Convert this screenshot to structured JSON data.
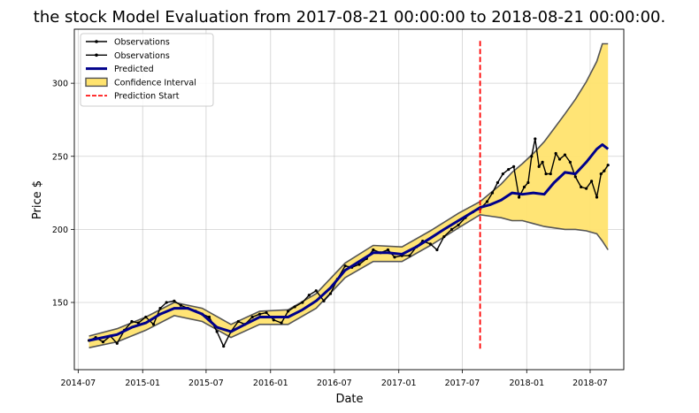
{
  "chart_data": {
    "type": "line",
    "title": "the stock Model Evaluation from 2017-08-21 00:00:00 to 2018-08-21 00:00:00.",
    "xlabel": "Date",
    "ylabel": "Price $",
    "x_ticks": [
      "2014-07",
      "2015-01",
      "2015-07",
      "2016-01",
      "2016-07",
      "2017-01",
      "2017-07",
      "2018-01",
      "2018-07"
    ],
    "y_ticks": [
      150,
      200,
      250,
      300
    ],
    "xlim": [
      "2014-06-20",
      "2018-10-05"
    ],
    "ylim": [
      104,
      337
    ],
    "grid": true,
    "legend_position": "top-left",
    "prediction_start": "2017-08-21",
    "prediction_start_line": {
      "y_range": [
        118,
        329
      ]
    },
    "colors": {
      "observations": "#000000",
      "predicted": "#00008b",
      "confidence_fill": "#ffe36e",
      "confidence_edge": "#555555",
      "prediction_start": "#ff0000"
    },
    "legend": [
      {
        "label": "Observations",
        "kind": "obs"
      },
      {
        "label": "Observations",
        "kind": "obs"
      },
      {
        "label": "Predicted",
        "kind": "pred"
      },
      {
        "label": "Confidence Interval",
        "kind": "ci"
      },
      {
        "label": "Prediction Start",
        "kind": "start"
      }
    ],
    "series": [
      {
        "name": "Observations",
        "x": [
          "2014-08-01",
          "2014-08-20",
          "2014-09-10",
          "2014-10-01",
          "2014-10-20",
          "2014-11-10",
          "2014-12-01",
          "2014-12-20",
          "2015-01-10",
          "2015-02-01",
          "2015-02-20",
          "2015-03-10",
          "2015-04-01",
          "2015-04-20",
          "2015-05-10",
          "2015-06-01",
          "2015-06-20",
          "2015-07-10",
          "2015-08-01",
          "2015-08-20",
          "2015-09-10",
          "2015-10-01",
          "2015-10-20",
          "2015-11-10",
          "2015-12-01",
          "2015-12-20",
          "2016-01-10",
          "2016-02-01",
          "2016-02-20",
          "2016-03-10",
          "2016-04-01",
          "2016-04-20",
          "2016-05-10",
          "2016-06-01",
          "2016-06-20",
          "2016-07-10",
          "2016-08-01",
          "2016-08-20",
          "2016-09-10",
          "2016-10-01",
          "2016-10-20",
          "2016-11-10",
          "2016-12-01",
          "2016-12-20",
          "2017-01-10",
          "2017-02-01",
          "2017-02-20",
          "2017-03-10",
          "2017-04-01",
          "2017-04-20",
          "2017-05-10",
          "2017-06-01",
          "2017-06-20",
          "2017-07-10",
          "2017-08-01",
          "2017-08-21",
          "2017-09-10",
          "2017-09-25",
          "2017-10-10",
          "2017-10-25",
          "2017-11-10",
          "2017-11-25",
          "2017-12-10",
          "2017-12-25",
          "2018-01-05",
          "2018-01-15",
          "2018-01-25",
          "2018-02-05",
          "2018-02-15",
          "2018-02-25",
          "2018-03-10",
          "2018-03-25",
          "2018-04-05",
          "2018-04-20",
          "2018-05-05",
          "2018-05-20",
          "2018-06-05",
          "2018-06-20",
          "2018-07-05",
          "2018-07-20",
          "2018-08-01",
          "2018-08-10",
          "2018-08-21"
        ],
        "values": [
          124,
          126,
          123,
          127,
          122,
          131,
          137,
          136,
          140,
          135,
          146,
          150,
          151,
          148,
          146,
          144,
          142,
          140,
          130,
          120,
          130,
          137,
          135,
          140,
          142,
          143,
          138,
          136,
          144,
          147,
          150,
          155,
          158,
          151,
          156,
          166,
          175,
          174,
          176,
          180,
          186,
          184,
          186,
          181,
          182,
          182,
          188,
          192,
          190,
          186,
          195,
          200,
          203,
          208,
          212,
          214,
          219,
          225,
          232,
          238,
          241,
          243,
          222,
          229,
          232,
          250,
          262,
          243,
          246,
          238,
          238,
          252,
          248,
          251,
          246,
          236,
          229,
          228,
          233,
          222,
          238,
          240,
          244
        ]
      },
      {
        "name": "Predicted",
        "x": [
          "2014-08-01",
          "2014-09-10",
          "2014-10-20",
          "2014-12-01",
          "2015-01-10",
          "2015-02-20",
          "2015-04-01",
          "2015-05-10",
          "2015-06-20",
          "2015-08-01",
          "2015-09-10",
          "2015-10-20",
          "2015-12-01",
          "2016-01-10",
          "2016-02-20",
          "2016-04-01",
          "2016-05-10",
          "2016-06-20",
          "2016-08-01",
          "2016-09-10",
          "2016-10-20",
          "2016-12-01",
          "2017-01-10",
          "2017-02-20",
          "2017-04-01",
          "2017-05-10",
          "2017-06-20",
          "2017-08-01",
          "2017-08-21",
          "2017-09-20",
          "2017-10-20",
          "2017-11-20",
          "2017-12-20",
          "2018-01-20",
          "2018-02-20",
          "2018-03-20",
          "2018-04-20",
          "2018-05-20",
          "2018-06-20",
          "2018-07-20",
          "2018-08-05",
          "2018-08-21"
        ],
        "values": [
          124,
          126,
          128,
          133,
          136,
          142,
          146,
          146,
          142,
          133,
          130,
          135,
          140,
          140,
          140,
          145,
          151,
          160,
          172,
          178,
          184,
          184,
          183,
          188,
          194,
          200,
          206,
          212,
          215,
          217,
          220,
          225,
          224,
          225,
          224,
          232,
          239,
          238,
          246,
          255,
          258,
          255
        ]
      },
      {
        "name": "Confidence Interval Upper",
        "x": [
          "2014-08-01",
          "2014-10-20",
          "2015-01-10",
          "2015-04-01",
          "2015-06-20",
          "2015-09-10",
          "2015-12-01",
          "2016-02-20",
          "2016-05-10",
          "2016-08-01",
          "2016-10-20",
          "2017-01-10",
          "2017-04-01",
          "2017-06-20",
          "2017-08-21",
          "2017-09-20",
          "2017-10-20",
          "2017-11-20",
          "2017-12-20",
          "2018-01-20",
          "2018-02-20",
          "2018-03-20",
          "2018-04-20",
          "2018-05-20",
          "2018-06-20",
          "2018-07-20",
          "2018-08-05",
          "2018-08-21"
        ],
        "values": [
          127,
          132,
          140,
          150,
          146,
          135,
          144,
          145,
          156,
          177,
          189,
          188,
          199,
          211,
          219,
          225,
          231,
          239,
          245,
          252,
          260,
          269,
          279,
          289,
          301,
          315,
          327,
          327
        ]
      },
      {
        "name": "Confidence Interval Lower",
        "x": [
          "2014-08-01",
          "2014-10-20",
          "2015-01-10",
          "2015-04-01",
          "2015-06-20",
          "2015-09-10",
          "2015-12-01",
          "2016-02-20",
          "2016-05-10",
          "2016-08-01",
          "2016-10-20",
          "2017-01-10",
          "2017-04-01",
          "2017-06-20",
          "2017-08-21",
          "2017-09-20",
          "2017-10-20",
          "2017-11-20",
          "2017-12-20",
          "2018-01-20",
          "2018-02-20",
          "2018-03-20",
          "2018-04-20",
          "2018-05-20",
          "2018-06-20",
          "2018-07-20",
          "2018-08-05",
          "2018-08-21"
        ],
        "values": [
          119,
          123,
          131,
          141,
          137,
          126,
          135,
          135,
          146,
          167,
          178,
          178,
          189,
          201,
          210,
          209,
          208,
          206,
          206,
          204,
          202,
          201,
          200,
          200,
          199,
          197,
          192,
          186
        ]
      }
    ]
  }
}
